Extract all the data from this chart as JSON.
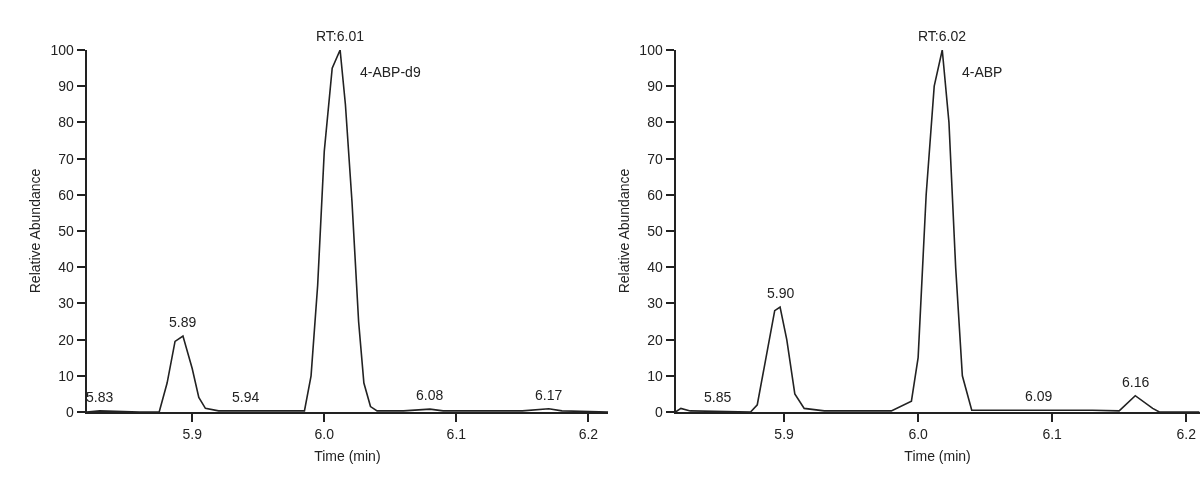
{
  "chart_data": [
    {
      "type": "line",
      "xlabel": "Time (min)",
      "ylabel": "Relative Abundance",
      "xlim": [
        5.82,
        6.215
      ],
      "xticks": [
        5.9,
        {
          "value": 6.0,
          "label": "6.0"
        },
        6.1,
        6.2
      ],
      "ylim": [
        0,
        100
      ],
      "yticks": [
        0,
        10,
        20,
        30,
        40,
        50,
        60,
        70,
        80,
        90,
        100
      ],
      "legend": false,
      "marker": "none",
      "line_style": "solid",
      "series": [
        {
          "name": "4-ABP-d9",
          "color": "#222222",
          "x": [
            5.82,
            5.83,
            5.86,
            5.875,
            5.881,
            5.887,
            5.893,
            5.9,
            5.905,
            5.91,
            5.92,
            5.96,
            5.985,
            5.99,
            5.995,
            6.0,
            6.006,
            6.012,
            6.016,
            6.021,
            6.026,
            6.03,
            6.035,
            6.04,
            6.06,
            6.08,
            6.09,
            6.15,
            6.17,
            6.18,
            6.215
          ],
          "values": [
            0,
            0.3,
            0,
            0,
            8,
            19.5,
            21,
            12,
            4,
            1,
            0.3,
            0.3,
            0.3,
            10,
            35,
            72,
            95,
            100,
            85,
            58,
            25,
            8,
            1.5,
            0.3,
            0.3,
            0.8,
            0.3,
            0.3,
            0.9,
            0.3,
            0
          ]
        }
      ],
      "annotations": [
        {
          "text": "RT:6.01",
          "x": 6.012,
          "y": 100
        },
        {
          "text": "5.89",
          "x": 5.893,
          "y": 21
        },
        {
          "text": "5.83",
          "x": 5.83,
          "y": 0.3
        },
        {
          "text": "5.94",
          "x": 5.94,
          "y": 0.3
        },
        {
          "text": "6.08",
          "x": 6.08,
          "y": 0.8
        },
        {
          "text": "6.17",
          "x": 6.17,
          "y": 0.9
        }
      ]
    },
    {
      "type": "line",
      "xlabel": "Time (min)",
      "ylabel": "Relative Abundance",
      "xlim": [
        5.819,
        6.21
      ],
      "xticks": [
        5.9,
        {
          "value": 6.0,
          "label": "6.0"
        },
        6.1,
        6.2
      ],
      "ylim": [
        0,
        100
      ],
      "yticks": [
        0,
        10,
        20,
        30,
        40,
        50,
        60,
        70,
        80,
        90,
        100
      ],
      "legend": false,
      "marker": "none",
      "line_style": "solid",
      "series": [
        {
          "name": "4-ABP",
          "color": "#222222",
          "x": [
            5.819,
            5.823,
            5.83,
            5.875,
            5.88,
            5.888,
            5.893,
            5.897,
            5.902,
            5.908,
            5.915,
            5.93,
            5.98,
            5.995,
            6.0,
            6.006,
            6.012,
            6.018,
            6.023,
            6.028,
            6.033,
            6.04,
            6.06,
            6.09,
            6.13,
            6.15,
            6.162,
            6.175,
            6.18,
            6.21
          ],
          "values": [
            0,
            1,
            0.3,
            0,
            2,
            18,
            28,
            29,
            20,
            5,
            1,
            0.3,
            0.3,
            3,
            15,
            60,
            90,
            100,
            80,
            40,
            10,
            0.5,
            0.5,
            0.5,
            0.5,
            0.3,
            4.5,
            1,
            0,
            0
          ]
        }
      ],
      "annotations": [
        {
          "text": "RT:6.02",
          "x": 6.018,
          "y": 100
        },
        {
          "text": "5.90",
          "x": 5.897,
          "y": 29
        },
        {
          "text": "5.85",
          "x": 5.85,
          "y": 0.3
        },
        {
          "text": "6.09",
          "x": 6.09,
          "y": 0.5
        },
        {
          "text": "6.16",
          "x": 6.162,
          "y": 4.5
        }
      ]
    }
  ]
}
